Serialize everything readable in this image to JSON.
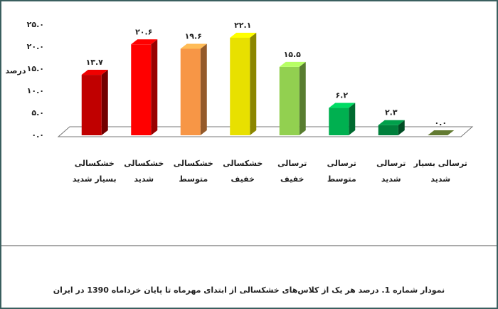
{
  "chart_data": {
    "type": "bar",
    "caption": "نمودار شماره 1. درصد هر یک از کلاس‌های خشکسالی از ابتدای مهرماه تا پایان خرداماه 1390 در ایران",
    "y_label": "درصد",
    "categories": [
      [
        "خشکسالی",
        "بسیار شدید"
      ],
      [
        "خشکسالی",
        "شدید"
      ],
      [
        "خشکسالی",
        "متوسط"
      ],
      [
        "خشکسالی",
        "خفیف"
      ],
      [
        "ترسالی",
        "خفیف"
      ],
      [
        "ترسالی",
        "متوسط"
      ],
      [
        "ترسالی",
        "شدید"
      ],
      [
        "ترسالی بسیار",
        "شدید"
      ]
    ],
    "values": [
      13.7,
      20.6,
      19.6,
      22.1,
      15.5,
      6.2,
      2.3,
      0.0
    ],
    "value_labels": [
      "۱۳.۷",
      "۲۰.۶",
      "۱۹.۶",
      "۲۲.۱",
      "۱۵.۵",
      "۶.۲",
      "۲.۳",
      "۰.۰"
    ],
    "colors": [
      "#c00000",
      "#ff0000",
      "#f79646",
      "#e8e000",
      "#92d050",
      "#00b050",
      "#00803c",
      "#4f6228"
    ],
    "ylim": [
      0,
      25
    ],
    "yticks": [
      {
        "value": 0,
        "label": "۰.۰"
      },
      {
        "value": 5,
        "label": "۵.۰"
      },
      {
        "value": 10,
        "label": "۱۰.۰"
      },
      {
        "value": 15,
        "label": "۱۵.۰"
      },
      {
        "value": 20,
        "label": "۲۰.۰"
      },
      {
        "value": 25,
        "label": "۲۵.۰"
      }
    ]
  }
}
